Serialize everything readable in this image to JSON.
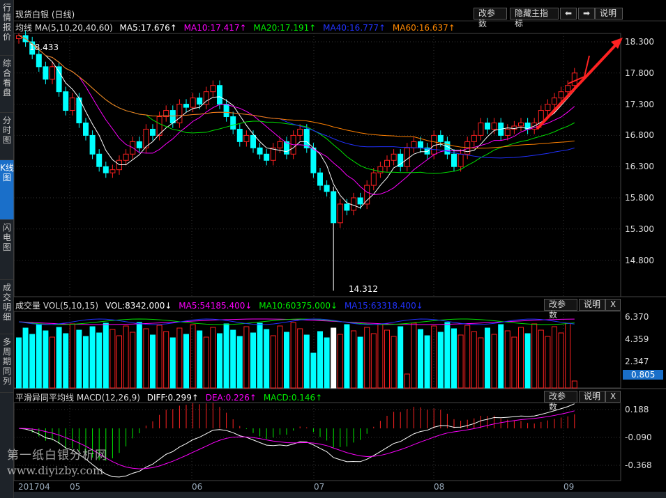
{
  "sidebar": {
    "tabs": [
      {
        "label": "行情报价"
      },
      {
        "label": "综合看盘"
      },
      {
        "label": "分时图"
      },
      {
        "label": "K线图",
        "active": true
      },
      {
        "label": "闪电图"
      },
      {
        "label": "成交明细"
      },
      {
        "label": "多周期同列"
      }
    ]
  },
  "header": {
    "title": "现货白银 (日线)",
    "buttons": [
      "改参数",
      "隐藏主指标",
      "⬅",
      "➡",
      "说明"
    ]
  },
  "ma": {
    "label": "均线 MA(5,10,20,40,60)",
    "ma5": "MA5:17.676↑",
    "ma10": "MA10:17.417↑",
    "ma20": "MA20:17.191↑",
    "ma40": "MA40:16.777↑",
    "ma60": "MA60:16.637↑"
  },
  "price_axis": [
    "18.300",
    "17.800",
    "17.300",
    "16.800",
    "16.300",
    "15.800",
    "15.300",
    "14.800"
  ],
  "price_marks": {
    "high": "18.433",
    "low": "14.312"
  },
  "volume": {
    "label": "成交量 VOL(5,10,15)",
    "vol": "VOL:8342.000↓",
    "ma5": "MA5:54185.400↓",
    "ma10": "MA10:60375.000↓",
    "ma15": "MA15:63318.400↓",
    "axis": [
      "6.370",
      "4.359",
      "2.347"
    ],
    "current": "0.805",
    "buttons": [
      "改参数",
      "说明",
      "X"
    ]
  },
  "macd": {
    "label": "平滑异同平均线 MACD(12,26,9)",
    "diff": "DIFF:0.299↑",
    "dea": "DEA:0.226↑",
    "macd": "MACD:0.146↑",
    "axis": [
      "0.188",
      "-0.090",
      "-0.368"
    ],
    "buttons": [
      "改参数",
      "说明",
      "X"
    ]
  },
  "dates": [
    "201704",
    "05",
    "06",
    "07",
    "08",
    "09"
  ],
  "watermark": {
    "line1": "第一纸白银分析网",
    "line2": "www.diyizby.com"
  },
  "colors": {
    "up": "#ff2020",
    "down": "#00ffff",
    "ma5": "#ffffff",
    "ma10": "#ff00ff",
    "ma20": "#00e000",
    "ma40": "#2030ff",
    "ma60": "#ff8000"
  },
  "chart_data": {
    "type": "candlestick",
    "title": "现货白银 (日线)",
    "ylim": [
      14.3,
      18.5
    ],
    "closes": [
      18.4,
      18.3,
      18.1,
      17.9,
      17.7,
      17.9,
      17.5,
      17.2,
      17.4,
      17.0,
      16.8,
      16.5,
      16.3,
      16.2,
      16.25,
      16.4,
      16.5,
      16.7,
      16.6,
      16.9,
      16.8,
      17.1,
      17.2,
      17.0,
      17.3,
      17.25,
      17.4,
      17.3,
      17.5,
      17.6,
      17.3,
      17.1,
      16.9,
      16.7,
      16.8,
      16.6,
      16.5,
      16.4,
      16.6,
      16.7,
      16.5,
      16.8,
      16.9,
      16.6,
      16.2,
      16.0,
      15.9,
      15.4,
      15.7,
      15.6,
      15.8,
      15.7,
      16.0,
      16.2,
      16.3,
      16.4,
      16.5,
      16.3,
      16.6,
      16.7,
      16.6,
      16.5,
      16.8,
      16.7,
      16.5,
      16.3,
      16.5,
      16.7,
      16.8,
      17.0,
      16.9,
      17.0,
      16.8,
      16.9,
      16.95,
      17.0,
      16.9,
      17.0,
      17.2,
      17.3,
      17.4,
      17.5,
      17.6,
      17.8
    ]
  }
}
